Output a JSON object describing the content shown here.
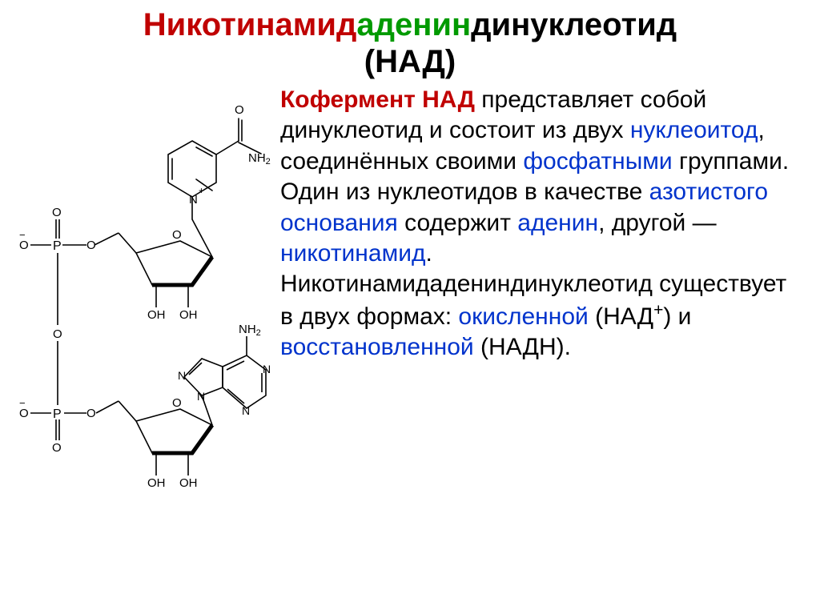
{
  "title": {
    "part1": "Никотинамид",
    "part2": "аденин",
    "part3": "динуклеотид",
    "line2": "(НАД)",
    "colors": {
      "part1": "#c00000",
      "part2": "#009a00",
      "part3": "#000000",
      "line2": "#000000"
    },
    "fontsize": 40,
    "fontweight": "bold"
  },
  "body": {
    "fontsize": 30,
    "color_default": "#000000",
    "color_blue": "#0033cc",
    "color_bold_red": "#c00000",
    "segments": [
      {
        "t": "Кофермент НАД",
        "style": "bold-red"
      },
      {
        "t": " представляет собой динуклеотид и состоит из двух ",
        "style": "plain"
      },
      {
        "t": "нуклеоитод",
        "style": "blue"
      },
      {
        "t": ", соединённых своими ",
        "style": "plain"
      },
      {
        "t": "фосфатными",
        "style": "blue"
      },
      {
        "t": " группами. Один из нуклеотидов в качестве ",
        "style": "plain"
      },
      {
        "t": "азотистого основания",
        "style": "blue"
      },
      {
        "t": " содержит ",
        "style": "plain"
      },
      {
        "t": "аденин",
        "style": "blue"
      },
      {
        "t": ", другой — ",
        "style": "plain"
      },
      {
        "t": "никотинамид",
        "style": "blue"
      },
      {
        "t": ". Никотинамидадениндинуклеотид существует в двух формах: ",
        "style": "plain"
      },
      {
        "t": "окисленной",
        "style": "blue"
      },
      {
        "t": " (НАД",
        "style": "plain"
      },
      {
        "t": "+",
        "style": "sup"
      },
      {
        "t": ") и ",
        "style": "plain"
      },
      {
        "t": "восстановленной",
        "style": "blue"
      },
      {
        "t": " (НАДН).",
        "style": "plain"
      }
    ]
  },
  "diagram": {
    "type": "chemical-structure",
    "name": "NAD",
    "stroke": "#000000",
    "stroke_width": 1.6,
    "label_fontsize": 14,
    "label_font": "Arial",
    "labels": {
      "O_double": "O",
      "NH2_amide": "NH2",
      "N_plus": "+",
      "O_minus1": "O",
      "minus1": "−",
      "O_minus2": "O",
      "minus2": "−",
      "P1": "P",
      "P2": "P",
      "OH": "OH",
      "NH2_adenine": "NH2",
      "N": "N",
      "O": "O"
    }
  }
}
